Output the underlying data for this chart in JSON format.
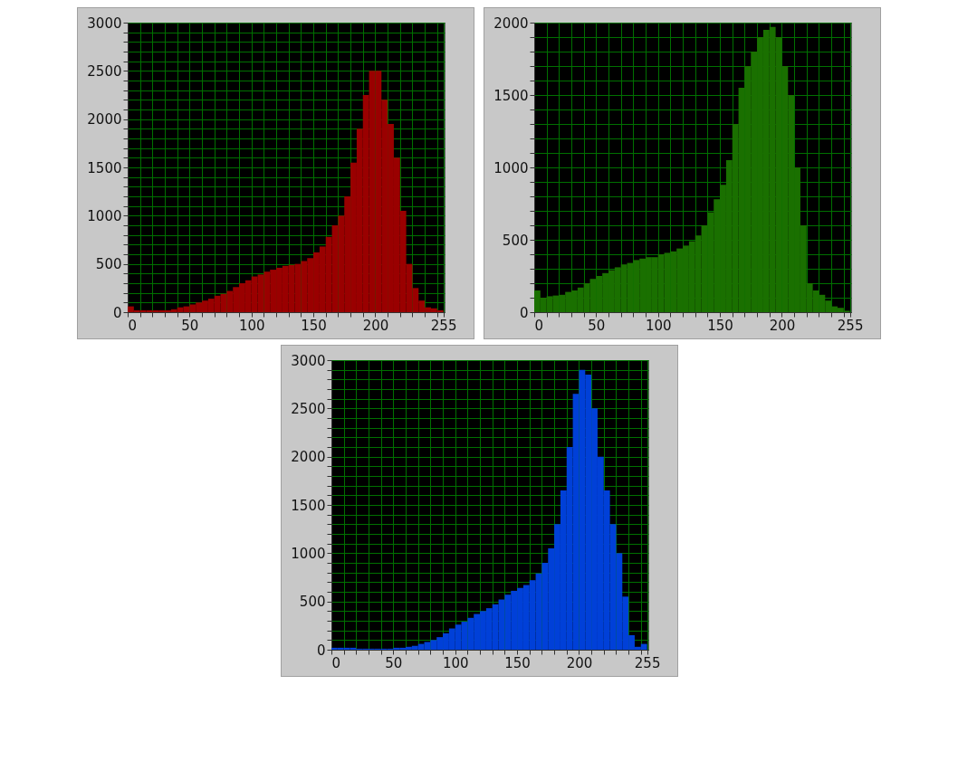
{
  "chart_data": [
    {
      "type": "histogram",
      "color": "#9a0000",
      "grid": true,
      "xlim": [
        0,
        256
      ],
      "ylim": [
        0,
        3000
      ],
      "xticks": [
        0,
        {
          "value": 10,
          "label": null
        },
        {
          "value": 20,
          "label": null
        },
        {
          "value": 30,
          "label": null
        },
        {
          "value": 40,
          "label": null
        },
        50,
        {
          "value": 60,
          "label": null
        },
        {
          "value": 70,
          "label": null
        },
        {
          "value": 80,
          "label": null
        },
        {
          "value": 90,
          "label": null
        },
        100,
        {
          "value": 110,
          "label": null
        },
        {
          "value": 120,
          "label": null
        },
        {
          "value": 130,
          "label": null
        },
        {
          "value": 140,
          "label": null
        },
        150,
        {
          "value": 160,
          "label": null
        },
        {
          "value": 170,
          "label": null
        },
        {
          "value": 180,
          "label": null
        },
        {
          "value": 190,
          "label": null
        },
        200,
        {
          "value": 210,
          "label": null
        },
        {
          "value": 220,
          "label": null
        },
        {
          "value": 230,
          "label": null
        },
        {
          "value": 240,
          "label": null
        },
        {
          "value": 250,
          "label": null
        },
        255
      ],
      "yticks": [
        0,
        {
          "value": 100,
          "label": null
        },
        {
          "value": 200,
          "label": null
        },
        {
          "value": 300,
          "label": null
        },
        {
          "value": 400,
          "label": null
        },
        500,
        {
          "value": 600,
          "label": null
        },
        {
          "value": 700,
          "label": null
        },
        {
          "value": 800,
          "label": null
        },
        {
          "value": 900,
          "label": null
        },
        1000,
        {
          "value": 1100,
          "label": null
        },
        {
          "value": 1200,
          "label": null
        },
        {
          "value": 1300,
          "label": null
        },
        {
          "value": 1400,
          "label": null
        },
        1500,
        {
          "value": 1600,
          "label": null
        },
        {
          "value": 1700,
          "label": null
        },
        {
          "value": 1800,
          "label": null
        },
        {
          "value": 1900,
          "label": null
        },
        2000,
        {
          "value": 2100,
          "label": null
        },
        {
          "value": 2200,
          "label": null
        },
        {
          "value": 2300,
          "label": null
        },
        {
          "value": 2400,
          "label": null
        },
        2500,
        {
          "value": 2600,
          "label": null
        },
        {
          "value": 2700,
          "label": null
        },
        {
          "value": 2800,
          "label": null
        },
        {
          "value": 2900,
          "label": null
        },
        3000
      ],
      "bins": [
        0,
        5,
        10,
        15,
        20,
        25,
        30,
        35,
        40,
        45,
        50,
        55,
        60,
        65,
        70,
        75,
        80,
        85,
        90,
        95,
        100,
        105,
        110,
        115,
        120,
        125,
        130,
        135,
        140,
        145,
        150,
        155,
        160,
        165,
        170,
        175,
        180,
        185,
        190,
        195,
        200,
        205,
        210,
        215,
        220,
        225,
        230,
        235,
        240,
        245,
        250,
        255
      ],
      "values": [
        60,
        20,
        20,
        20,
        20,
        20,
        20,
        30,
        50,
        60,
        80,
        100,
        120,
        140,
        170,
        190,
        220,
        260,
        300,
        330,
        370,
        390,
        420,
        440,
        460,
        480,
        490,
        500,
        530,
        560,
        620,
        680,
        780,
        900,
        1000,
        1200,
        1550,
        1900,
        2250,
        2500,
        2500,
        2200,
        1950,
        1600,
        1050,
        500,
        250,
        120,
        50,
        40,
        20
      ]
    },
    {
      "type": "histogram",
      "color": "#1a7000",
      "grid": true,
      "xlim": [
        0,
        256
      ],
      "ylim": [
        0,
        2000
      ],
      "xticks": [
        0,
        {
          "value": 10,
          "label": null
        },
        {
          "value": 20,
          "label": null
        },
        {
          "value": 30,
          "label": null
        },
        {
          "value": 40,
          "label": null
        },
        50,
        {
          "value": 60,
          "label": null
        },
        {
          "value": 70,
          "label": null
        },
        {
          "value": 80,
          "label": null
        },
        {
          "value": 90,
          "label": null
        },
        100,
        {
          "value": 110,
          "label": null
        },
        {
          "value": 120,
          "label": null
        },
        {
          "value": 130,
          "label": null
        },
        {
          "value": 140,
          "label": null
        },
        150,
        {
          "value": 160,
          "label": null
        },
        {
          "value": 170,
          "label": null
        },
        {
          "value": 180,
          "label": null
        },
        {
          "value": 190,
          "label": null
        },
        200,
        {
          "value": 210,
          "label": null
        },
        {
          "value": 220,
          "label": null
        },
        {
          "value": 230,
          "label": null
        },
        {
          "value": 240,
          "label": null
        },
        {
          "value": 250,
          "label": null
        },
        255
      ],
      "yticks": [
        0,
        {
          "value": 100,
          "label": null
        },
        {
          "value": 200,
          "label": null
        },
        {
          "value": 300,
          "label": null
        },
        {
          "value": 400,
          "label": null
        },
        500,
        {
          "value": 600,
          "label": null
        },
        {
          "value": 700,
          "label": null
        },
        {
          "value": 800,
          "label": null
        },
        {
          "value": 900,
          "label": null
        },
        1000,
        {
          "value": 1100,
          "label": null
        },
        {
          "value": 1200,
          "label": null
        },
        {
          "value": 1300,
          "label": null
        },
        {
          "value": 1400,
          "label": null
        },
        1500,
        {
          "value": 1600,
          "label": null
        },
        {
          "value": 1700,
          "label": null
        },
        {
          "value": 1800,
          "label": null
        },
        {
          "value": 1900,
          "label": null
        },
        2000
      ],
      "bins": [
        0,
        5,
        10,
        15,
        20,
        25,
        30,
        35,
        40,
        45,
        50,
        55,
        60,
        65,
        70,
        75,
        80,
        85,
        90,
        95,
        100,
        105,
        110,
        115,
        120,
        125,
        130,
        135,
        140,
        145,
        150,
        155,
        160,
        165,
        170,
        175,
        180,
        185,
        190,
        195,
        200,
        205,
        210,
        215,
        220,
        225,
        230,
        235,
        240,
        245,
        250,
        255
      ],
      "values": [
        150,
        100,
        110,
        115,
        120,
        140,
        150,
        170,
        200,
        230,
        250,
        270,
        290,
        310,
        330,
        340,
        360,
        370,
        380,
        380,
        400,
        410,
        420,
        440,
        460,
        490,
        530,
        600,
        690,
        780,
        880,
        1050,
        1300,
        1550,
        1700,
        1800,
        1900,
        1950,
        1970,
        1900,
        1700,
        1500,
        1000,
        600,
        200,
        150,
        120,
        80,
        40,
        30,
        10
      ]
    },
    {
      "type": "histogram",
      "color": "#0040d8",
      "grid": true,
      "xlim": [
        0,
        256
      ],
      "ylim": [
        0,
        3000
      ],
      "xticks": [
        0,
        {
          "value": 10,
          "label": null
        },
        {
          "value": 20,
          "label": null
        },
        {
          "value": 30,
          "label": null
        },
        {
          "value": 40,
          "label": null
        },
        50,
        {
          "value": 60,
          "label": null
        },
        {
          "value": 70,
          "label": null
        },
        {
          "value": 80,
          "label": null
        },
        {
          "value": 90,
          "label": null
        },
        100,
        {
          "value": 110,
          "label": null
        },
        {
          "value": 120,
          "label": null
        },
        {
          "value": 130,
          "label": null
        },
        {
          "value": 140,
          "label": null
        },
        150,
        {
          "value": 160,
          "label": null
        },
        {
          "value": 170,
          "label": null
        },
        {
          "value": 180,
          "label": null
        },
        {
          "value": 190,
          "label": null
        },
        200,
        {
          "value": 210,
          "label": null
        },
        {
          "value": 220,
          "label": null
        },
        {
          "value": 230,
          "label": null
        },
        {
          "value": 240,
          "label": null
        },
        {
          "value": 250,
          "label": null
        },
        255
      ],
      "yticks": [
        0,
        {
          "value": 100,
          "label": null
        },
        {
          "value": 200,
          "label": null
        },
        {
          "value": 300,
          "label": null
        },
        {
          "value": 400,
          "label": null
        },
        500,
        {
          "value": 600,
          "label": null
        },
        {
          "value": 700,
          "label": null
        },
        {
          "value": 800,
          "label": null
        },
        {
          "value": 900,
          "label": null
        },
        1000,
        {
          "value": 1100,
          "label": null
        },
        {
          "value": 1200,
          "label": null
        },
        {
          "value": 1300,
          "label": null
        },
        {
          "value": 1400,
          "label": null
        },
        1500,
        {
          "value": 1600,
          "label": null
        },
        {
          "value": 1700,
          "label": null
        },
        {
          "value": 1800,
          "label": null
        },
        {
          "value": 1900,
          "label": null
        },
        2000,
        {
          "value": 2100,
          "label": null
        },
        {
          "value": 2200,
          "label": null
        },
        {
          "value": 2300,
          "label": null
        },
        {
          "value": 2400,
          "label": null
        },
        2500,
        {
          "value": 2600,
          "label": null
        },
        {
          "value": 2700,
          "label": null
        },
        {
          "value": 2800,
          "label": null
        },
        {
          "value": 2900,
          "label": null
        },
        3000
      ],
      "bins": [
        0,
        5,
        10,
        15,
        20,
        25,
        30,
        35,
        40,
        45,
        50,
        55,
        60,
        65,
        70,
        75,
        80,
        85,
        90,
        95,
        100,
        105,
        110,
        115,
        120,
        125,
        130,
        135,
        140,
        145,
        150,
        155,
        160,
        165,
        170,
        175,
        180,
        185,
        190,
        195,
        200,
        205,
        210,
        215,
        220,
        225,
        230,
        235,
        240,
        245,
        250,
        255
      ],
      "values": [
        20,
        20,
        20,
        20,
        10,
        10,
        10,
        10,
        10,
        10,
        20,
        20,
        30,
        40,
        60,
        80,
        100,
        130,
        170,
        220,
        260,
        290,
        330,
        370,
        400,
        430,
        470,
        520,
        570,
        610,
        640,
        670,
        720,
        790,
        900,
        1050,
        1300,
        1650,
        2100,
        2650,
        2900,
        2850,
        2500,
        2000,
        1650,
        1300,
        1000,
        550,
        150,
        30,
        60
      ]
    }
  ]
}
